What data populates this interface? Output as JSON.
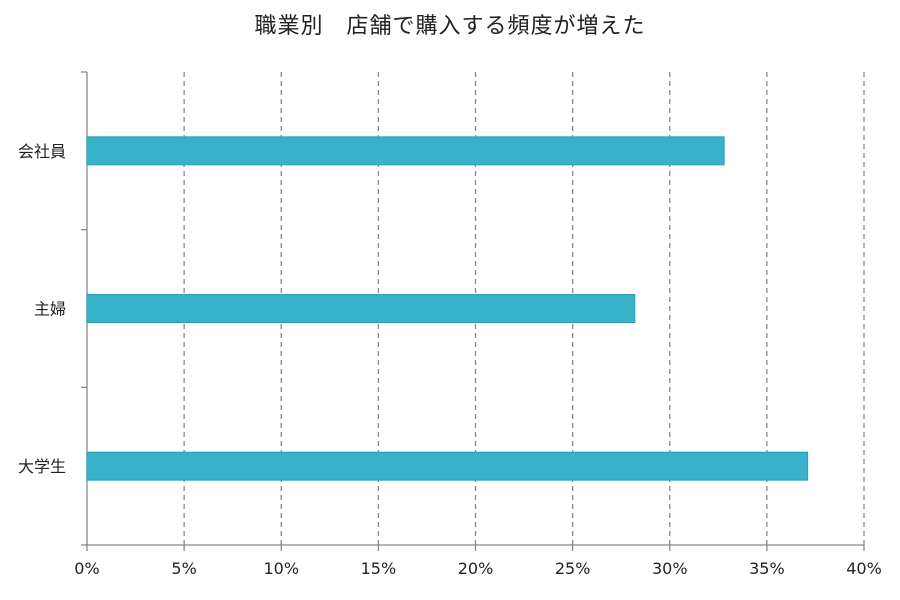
{
  "chart_data": {
    "type": "bar",
    "orientation": "horizontal",
    "title": "職業別　店舗で購入する頻度が増えた",
    "categories": [
      "会社員",
      "主婦",
      "大学生"
    ],
    "values": [
      32.8,
      28.2,
      37.1
    ],
    "xlim": [
      0,
      40
    ],
    "xticks": [
      0,
      5,
      10,
      15,
      20,
      25,
      30,
      35,
      40
    ],
    "xtick_labels": [
      "0%",
      "5%",
      "10%",
      "15%",
      "20%",
      "25%",
      "30%",
      "35%",
      "40%"
    ],
    "grid": "vertical dashed",
    "legend": "none",
    "bar_color": "#38b2cb",
    "bar_edge_color": "#2a9db5",
    "grid_color": "#888888",
    "axis_color": "#888888"
  }
}
